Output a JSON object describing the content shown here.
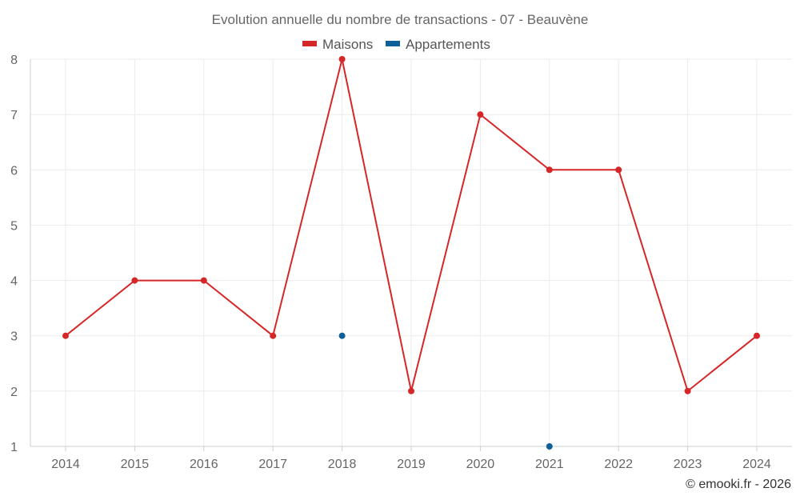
{
  "chart_data": {
    "type": "line",
    "title": "Evolution annuelle du nombre de transactions - 07 - Beauvène",
    "categories": [
      "2014",
      "2015",
      "2016",
      "2017",
      "2018",
      "2019",
      "2020",
      "2021",
      "2022",
      "2023",
      "2024"
    ],
    "series": [
      {
        "name": "Maisons",
        "color": "#d62728",
        "values": [
          3,
          4,
          4,
          3,
          8,
          2,
          7,
          6,
          6,
          2,
          3
        ]
      },
      {
        "name": "Appartements",
        "color": "#0f6099",
        "values": [
          null,
          null,
          null,
          null,
          3,
          null,
          null,
          1,
          null,
          null,
          null
        ]
      }
    ],
    "ylim": [
      1,
      8
    ],
    "yticks": [
      "1",
      "2",
      "3",
      "4",
      "5",
      "6",
      "7",
      "8"
    ],
    "grid": true,
    "legend_position": "top-center",
    "credit": "© emooki.fr - 2026"
  }
}
